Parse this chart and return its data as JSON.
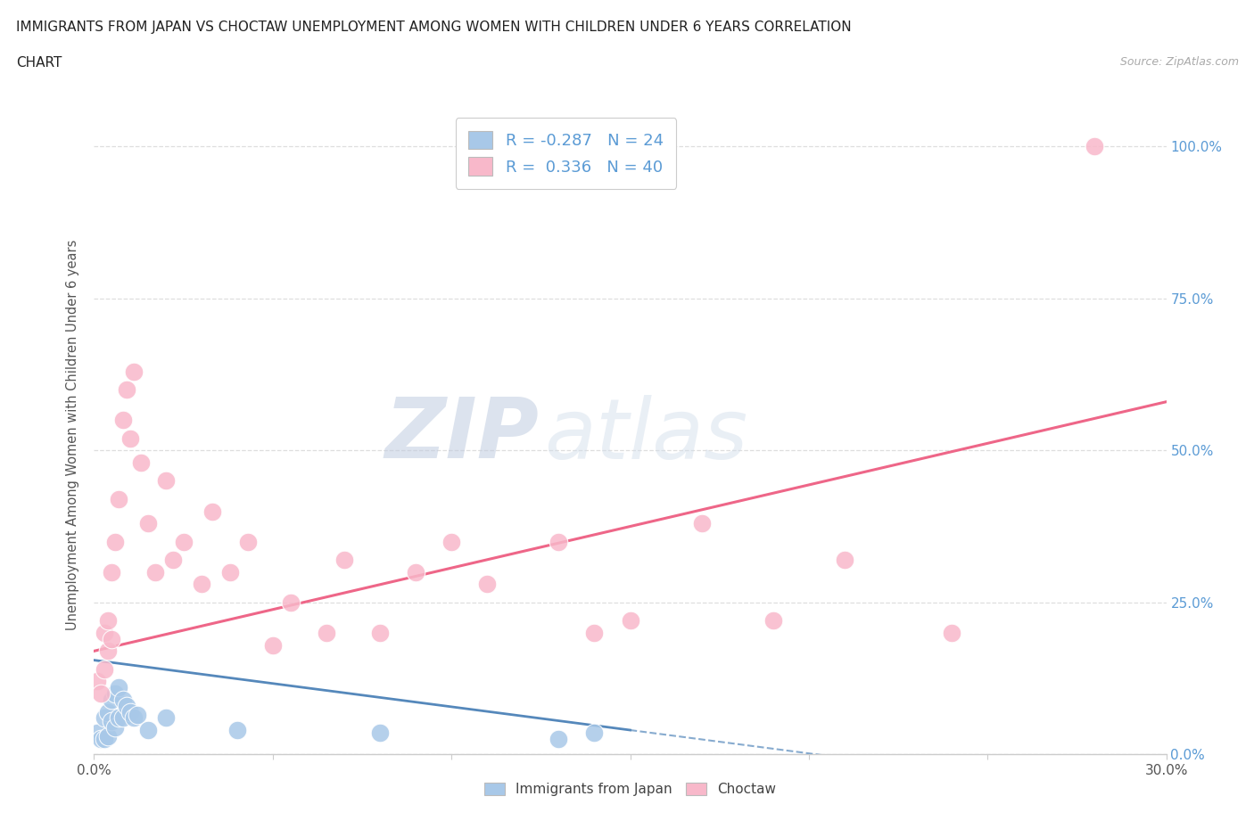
{
  "title_line1": "IMMIGRANTS FROM JAPAN VS CHOCTAW UNEMPLOYMENT AMONG WOMEN WITH CHILDREN UNDER 6 YEARS CORRELATION",
  "title_line2": "CHART",
  "source": "Source: ZipAtlas.com",
  "ylabel": "Unemployment Among Women with Children Under 6 years",
  "xmin": 0.0,
  "xmax": 0.3,
  "ymin": 0.0,
  "ymax": 1.05,
  "ytick_values": [
    0.0,
    0.25,
    0.5,
    0.75,
    1.0
  ],
  "ytick_labels": [
    "0.0%",
    "25.0%",
    "50.0%",
    "75.0%",
    "100.0%"
  ],
  "grid_color": "#dedede",
  "background_color": "#ffffff",
  "japan_color": "#a8c8e8",
  "choctaw_color": "#f8b8ca",
  "japan_line_color": "#5588bb",
  "choctaw_line_color": "#ee6688",
  "legend_japan_label": "R = -0.287   N = 24",
  "legend_choctaw_label": "R =  0.336   N = 40",
  "watermark_zip": "ZIP",
  "watermark_atlas": "atlas",
  "japan_points_x": [
    0.001,
    0.002,
    0.003,
    0.003,
    0.004,
    0.004,
    0.005,
    0.005,
    0.006,
    0.006,
    0.007,
    0.007,
    0.008,
    0.008,
    0.009,
    0.01,
    0.011,
    0.012,
    0.015,
    0.02,
    0.04,
    0.08,
    0.13,
    0.14
  ],
  "japan_points_y": [
    0.035,
    0.025,
    0.025,
    0.06,
    0.03,
    0.07,
    0.055,
    0.09,
    0.045,
    0.1,
    0.06,
    0.11,
    0.06,
    0.09,
    0.08,
    0.07,
    0.06,
    0.065,
    0.04,
    0.06,
    0.04,
    0.035,
    0.025,
    0.035
  ],
  "choctaw_points_x": [
    0.001,
    0.002,
    0.003,
    0.003,
    0.004,
    0.004,
    0.005,
    0.005,
    0.006,
    0.007,
    0.008,
    0.009,
    0.01,
    0.011,
    0.013,
    0.015,
    0.017,
    0.02,
    0.022,
    0.025,
    0.03,
    0.033,
    0.038,
    0.043,
    0.05,
    0.055,
    0.065,
    0.07,
    0.08,
    0.09,
    0.1,
    0.11,
    0.13,
    0.14,
    0.15,
    0.17,
    0.19,
    0.21,
    0.24,
    0.28
  ],
  "choctaw_points_y": [
    0.12,
    0.1,
    0.14,
    0.2,
    0.17,
    0.22,
    0.19,
    0.3,
    0.35,
    0.42,
    0.55,
    0.6,
    0.52,
    0.63,
    0.48,
    0.38,
    0.3,
    0.45,
    0.32,
    0.35,
    0.28,
    0.4,
    0.3,
    0.35,
    0.18,
    0.25,
    0.2,
    0.32,
    0.2,
    0.3,
    0.35,
    0.28,
    0.35,
    0.2,
    0.22,
    0.38,
    0.22,
    0.32,
    0.2,
    1.0
  ]
}
